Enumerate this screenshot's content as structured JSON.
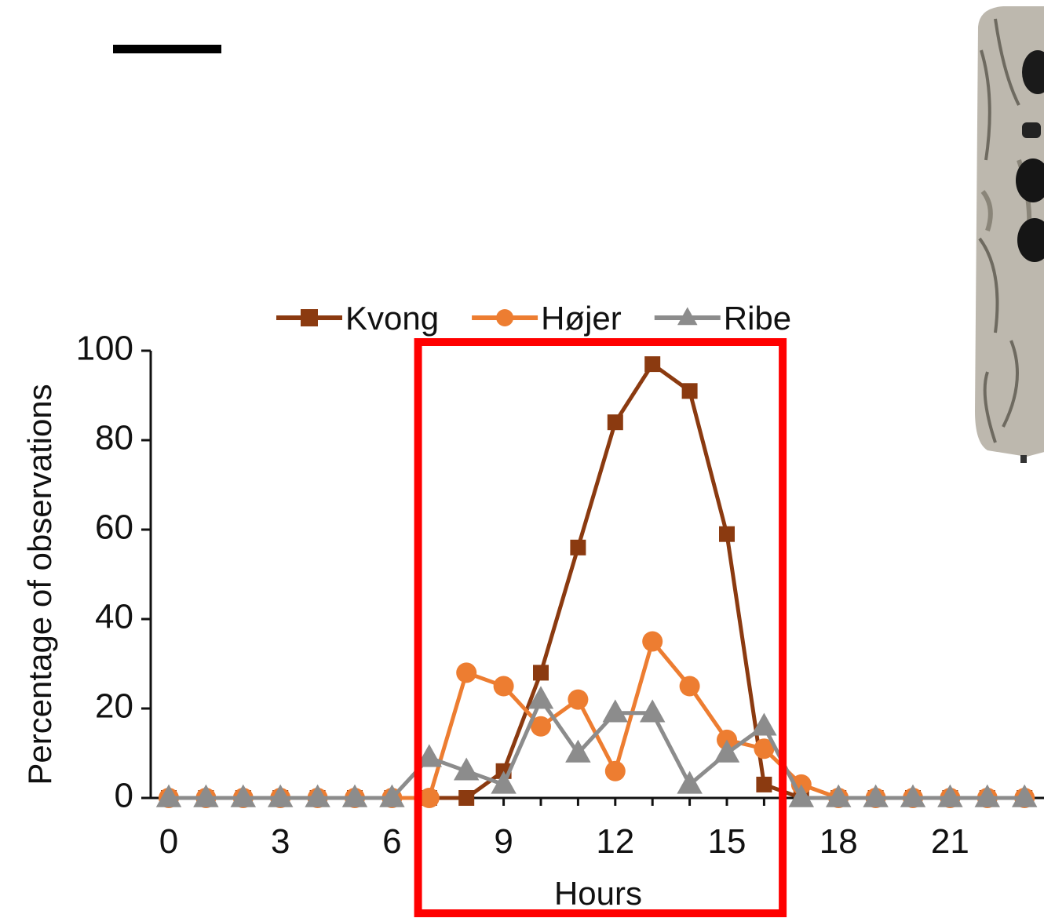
{
  "chart_data": {
    "type": "line",
    "xlabel": "Hours",
    "ylabel": "Percentage of observations",
    "x": [
      0,
      1,
      2,
      3,
      4,
      5,
      6,
      7,
      8,
      9,
      10,
      11,
      12,
      13,
      14,
      15,
      16,
      17,
      18,
      19,
      20,
      21,
      22,
      23
    ],
    "xticks": [
      0,
      3,
      6,
      9,
      12,
      15,
      18,
      21
    ],
    "yticks": [
      0,
      20,
      40,
      60,
      80,
      100
    ],
    "xlim": [
      -0.5,
      24
    ],
    "ylim": [
      0,
      100
    ],
    "grid": false,
    "legend_position": "top",
    "series": [
      {
        "name": "Kvong",
        "color": "#8b3a10",
        "marker": "square",
        "values": [
          0,
          0,
          0,
          0,
          0,
          0,
          0,
          0,
          0,
          6,
          28,
          56,
          84,
          97,
          91,
          59,
          3,
          0,
          0,
          0,
          0,
          0,
          0,
          0
        ]
      },
      {
        "name": "Højer",
        "color": "#ed7d31",
        "marker": "circle",
        "values": [
          0,
          0,
          0,
          0,
          0,
          0,
          0,
          0,
          28,
          25,
          16,
          22,
          6,
          35,
          25,
          13,
          11,
          3,
          0,
          0,
          0,
          0,
          0,
          0
        ]
      },
      {
        "name": "Ribe",
        "color": "#8c8c8c",
        "marker": "triangle",
        "values": [
          0,
          0,
          0,
          0,
          0,
          0,
          0,
          9,
          6,
          3,
          22,
          10,
          19,
          19,
          3,
          10,
          16,
          0,
          0,
          0,
          0,
          0,
          0,
          0
        ]
      }
    ],
    "annotations": [
      {
        "type": "highlight-box",
        "color": "#ff0000",
        "x_range": [
          6.7,
          16.5
        ]
      }
    ]
  },
  "images": {
    "scale_bar": "scale-bar",
    "camera": "trail-camera-photo"
  }
}
